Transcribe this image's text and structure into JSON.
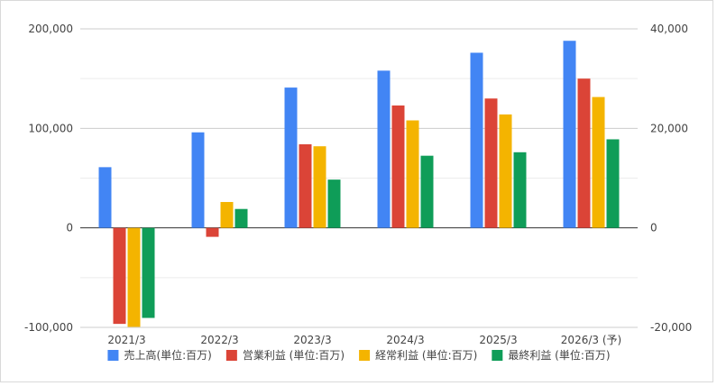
{
  "chart_data": {
    "type": "bar",
    "categories": [
      "2021/3",
      "2022/3",
      "2023/3",
      "2024/3",
      "2025/3",
      "2026/3 (予)"
    ],
    "series": [
      {
        "name": "売上高(単位:百万)",
        "color": "#4285f4",
        "axis": "left",
        "values": [
          61000,
          96000,
          141000,
          158000,
          176000,
          188000
        ]
      },
      {
        "name": "営業利益 (単位:百万)",
        "color": "#db4437",
        "axis": "right",
        "values": [
          -19300,
          -1800,
          16800,
          24600,
          26000,
          30000
        ]
      },
      {
        "name": "経常利益 (単位:百万)",
        "color": "#f4b400",
        "axis": "right",
        "values": [
          -19900,
          5200,
          16400,
          21600,
          22800,
          26300
        ]
      },
      {
        "name": "最終利益 (単位:百万)",
        "color": "#0f9d58",
        "axis": "right",
        "values": [
          -18100,
          3800,
          9700,
          14500,
          15200,
          17800
        ]
      }
    ],
    "y_left": {
      "ylim": [
        -100000,
        200000
      ],
      "ticks": [
        -100000,
        0,
        100000,
        200000
      ],
      "tick_labels": [
        "-100,000",
        "0",
        "100,000",
        "200,000"
      ]
    },
    "y_right": {
      "ylim": [
        -20000,
        40000
      ],
      "ticks": [
        -20000,
        0,
        20000,
        40000
      ],
      "tick_labels": [
        "-20,000",
        "0",
        "20,000",
        "40,000"
      ]
    },
    "grid": true,
    "legend_position": "bottom"
  }
}
